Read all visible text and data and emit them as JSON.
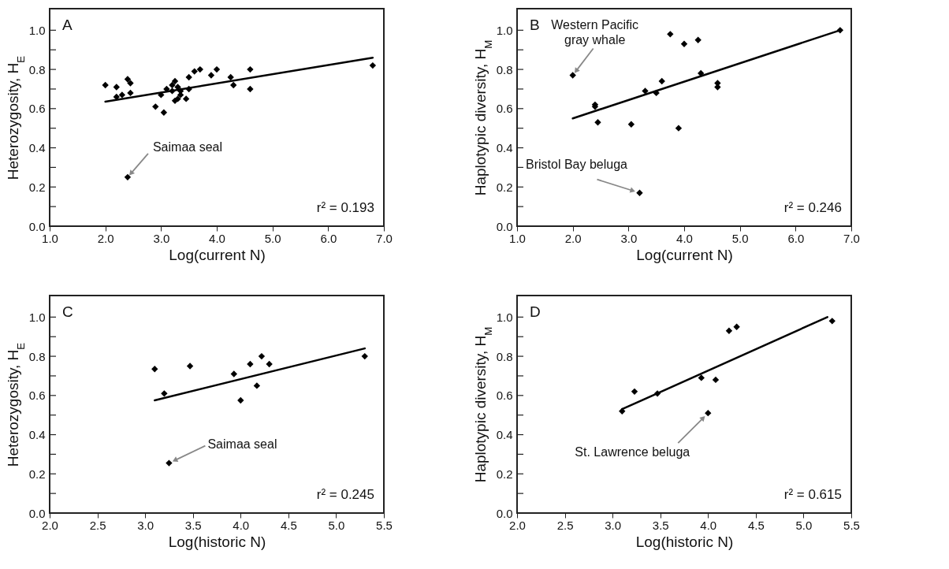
{
  "chart_data": [
    {
      "type": "scatter",
      "xlabel": "Log(current N)",
      "ylabel": "Heterozygosity, H$_{E}$",
      "xlim": [
        1,
        7
      ],
      "ylim": [
        0,
        1.11
      ],
      "xticks": [
        {
          "value": 1,
          "label": "1.0"
        },
        {
          "value": 2,
          "label": "2.0"
        },
        {
          "value": 3,
          "label": "3.0"
        },
        {
          "value": 4,
          "label": "4.0"
        },
        {
          "value": 5,
          "label": "5.0"
        },
        {
          "value": 6,
          "label": "6.0"
        },
        {
          "value": 7,
          "label": "7.0"
        }
      ],
      "yticks": [
        {
          "value": 0,
          "label": "0.0"
        },
        {
          "value": 0.1,
          "label": null
        },
        {
          "value": 0.2,
          "label": "0.2"
        },
        {
          "value": 0.3,
          "label": null
        },
        {
          "value": 0.4,
          "label": "0.4"
        },
        {
          "value": 0.5,
          "label": null
        },
        {
          "value": 0.6,
          "label": "0.6"
        },
        {
          "value": 0.7,
          "label": null
        },
        {
          "value": 0.8,
          "label": "0.8"
        },
        {
          "value": 0.9,
          "label": null
        },
        {
          "value": 1,
          "label": "1.0"
        }
      ],
      "annotations": [
        "A",
        {
          "text": "Saimaa seal",
          "x": 2.4,
          "y": 0.25
        },
        "r² = 0.193"
      ],
      "series": [
        {
          "color": "#000000",
          "marker": "diamond",
          "x": [
            2.0,
            2.2,
            2.2,
            2.3,
            2.4,
            2.45,
            2.45,
            2.4,
            2.9,
            3.0,
            3.05,
            3.1,
            3.2,
            3.2,
            3.25,
            3.25,
            3.3,
            3.3,
            3.35,
            3.35,
            3.45,
            3.5,
            3.5,
            3.6,
            3.7,
            3.9,
            4.0,
            4.25,
            4.3,
            4.6,
            4.6,
            6.8
          ],
          "values": [
            0.72,
            0.71,
            0.66,
            0.67,
            0.75,
            0.73,
            0.68,
            0.25,
            0.61,
            0.67,
            0.58,
            0.7,
            0.69,
            0.72,
            0.74,
            0.64,
            0.65,
            0.71,
            0.67,
            0.69,
            0.65,
            0.7,
            0.76,
            0.79,
            0.8,
            0.77,
            0.8,
            0.76,
            0.72,
            0.8,
            0.7,
            0.82
          ]
        },
        {
          "type": "line",
          "color": "#000000",
          "x": [
            2.0,
            6.8
          ],
          "values": [
            0.635,
            0.86
          ]
        }
      ]
    },
    {
      "type": "scatter",
      "xlabel": "Log(current N)",
      "ylabel": "Haplotypic diversity, H$_{M}$",
      "xlim": [
        1,
        7
      ],
      "ylim": [
        0,
        1.11
      ],
      "xticks": [
        {
          "value": 1,
          "label": "1.0"
        },
        {
          "value": 2,
          "label": "2.0"
        },
        {
          "value": 3,
          "label": "3.0"
        },
        {
          "value": 4,
          "label": "4.0"
        },
        {
          "value": 5,
          "label": "5.0"
        },
        {
          "value": 6,
          "label": "6.0"
        },
        {
          "value": 7,
          "label": "7.0"
        }
      ],
      "yticks": [
        {
          "value": 0,
          "label": "0.0"
        },
        {
          "value": 0.1,
          "label": null
        },
        {
          "value": 0.2,
          "label": "0.2"
        },
        {
          "value": 0.3,
          "label": null
        },
        {
          "value": 0.4,
          "label": "0.4"
        },
        {
          "value": 0.5,
          "label": null
        },
        {
          "value": 0.6,
          "label": "0.6"
        },
        {
          "value": 0.7,
          "label": null
        },
        {
          "value": 0.8,
          "label": "0.8"
        },
        {
          "value": 0.9,
          "label": null
        },
        {
          "value": 1,
          "label": "1.0"
        }
      ],
      "annotations": [
        "B",
        {
          "text": "Western Pacific\ngray whale",
          "x": 2.0,
          "y": 0.77
        },
        {
          "text": "Bristol Bay beluga",
          "x": 3.2,
          "y": 0.17
        },
        "r² = 0.246"
      ],
      "series": [
        {
          "color": "#000000",
          "marker": "diamond",
          "x": [
            2.0,
            2.4,
            2.4,
            2.45,
            3.05,
            3.2,
            3.3,
            3.5,
            3.6,
            3.75,
            3.9,
            4.0,
            4.25,
            4.3,
            4.6,
            4.6,
            6.8
          ],
          "values": [
            0.77,
            0.62,
            0.61,
            0.53,
            0.52,
            0.17,
            0.69,
            0.68,
            0.74,
            0.98,
            0.5,
            0.93,
            0.95,
            0.78,
            0.73,
            0.71,
            1.0
          ]
        },
        {
          "type": "line",
          "color": "#000000",
          "x": [
            2.0,
            6.8
          ],
          "values": [
            0.55,
            1.0
          ]
        }
      ]
    },
    {
      "type": "scatter",
      "xlabel": "Log(historic N)",
      "ylabel": "Heterozygosity, H$_{E}$",
      "xlim": [
        2,
        5.5
      ],
      "ylim": [
        0,
        1.11
      ],
      "xticks": [
        {
          "value": 2,
          "label": "2.0"
        },
        2.5,
        {
          "value": 3,
          "label": "3.0"
        },
        3.5,
        {
          "value": 4,
          "label": "4.0"
        },
        4.5,
        {
          "value": 5,
          "label": "5.0"
        },
        5.5
      ],
      "yticks": [
        {
          "value": 0,
          "label": "0.0"
        },
        {
          "value": 0.1,
          "label": null
        },
        {
          "value": 0.2,
          "label": "0.2"
        },
        {
          "value": 0.3,
          "label": null
        },
        {
          "value": 0.4,
          "label": "0.4"
        },
        {
          "value": 0.5,
          "label": null
        },
        {
          "value": 0.6,
          "label": "0.6"
        },
        {
          "value": 0.7,
          "label": null
        },
        {
          "value": 0.8,
          "label": "0.8"
        },
        {
          "value": 0.9,
          "label": null
        },
        {
          "value": 1,
          "label": "1.0"
        }
      ],
      "annotations": [
        "C",
        {
          "text": "Saimaa seal",
          "x": 3.25,
          "y": 0.255
        },
        "r² = 0.245"
      ],
      "series": [
        {
          "color": "#000000",
          "marker": "diamond",
          "x": [
            3.1,
            3.2,
            3.25,
            3.47,
            3.93,
            4.0,
            4.1,
            4.17,
            4.22,
            4.3,
            5.3
          ],
          "values": [
            0.735,
            0.61,
            0.255,
            0.75,
            0.71,
            0.575,
            0.76,
            0.65,
            0.8,
            0.76,
            0.8
          ]
        },
        {
          "type": "line",
          "color": "#000000",
          "x": [
            3.1,
            5.3
          ],
          "values": [
            0.575,
            0.84
          ]
        }
      ]
    },
    {
      "type": "scatter",
      "xlabel": "Log(historic N)",
      "ylabel": "Haplotypic diversity, H$_{M}$",
      "xlim": [
        2,
        5.5
      ],
      "ylim": [
        0,
        1.11
      ],
      "xticks": [
        {
          "value": 2,
          "label": "2.0"
        },
        2.5,
        {
          "value": 3,
          "label": "3.0"
        },
        3.5,
        {
          "value": 4,
          "label": "4.0"
        },
        4.5,
        {
          "value": 5,
          "label": "5.0"
        },
        5.5
      ],
      "yticks": [
        {
          "value": 0,
          "label": "0.0"
        },
        {
          "value": 0.1,
          "label": null
        },
        {
          "value": 0.2,
          "label": "0.2"
        },
        {
          "value": 0.3,
          "label": null
        },
        {
          "value": 0.4,
          "label": "0.4"
        },
        {
          "value": 0.5,
          "label": null
        },
        {
          "value": 0.6,
          "label": "0.6"
        },
        {
          "value": 0.7,
          "label": null
        },
        {
          "value": 0.8,
          "label": "0.8"
        },
        {
          "value": 0.9,
          "label": null
        },
        {
          "value": 1,
          "label": "1.0"
        }
      ],
      "annotations": [
        "D",
        {
          "text": "St. Lawrence beluga",
          "x": 4.0,
          "y": 0.51
        },
        "r² = 0.615"
      ],
      "series": [
        {
          "color": "#000000",
          "marker": "diamond",
          "x": [
            3.1,
            3.23,
            3.47,
            3.93,
            4.0,
            4.08,
            4.22,
            4.3,
            5.3
          ],
          "values": [
            0.52,
            0.62,
            0.61,
            0.69,
            0.51,
            0.68,
            0.93,
            0.95,
            0.98
          ]
        },
        {
          "type": "line",
          "color": "#000000",
          "x": [
            3.1,
            5.25
          ],
          "values": [
            0.53,
            1.0
          ]
        }
      ]
    }
  ]
}
